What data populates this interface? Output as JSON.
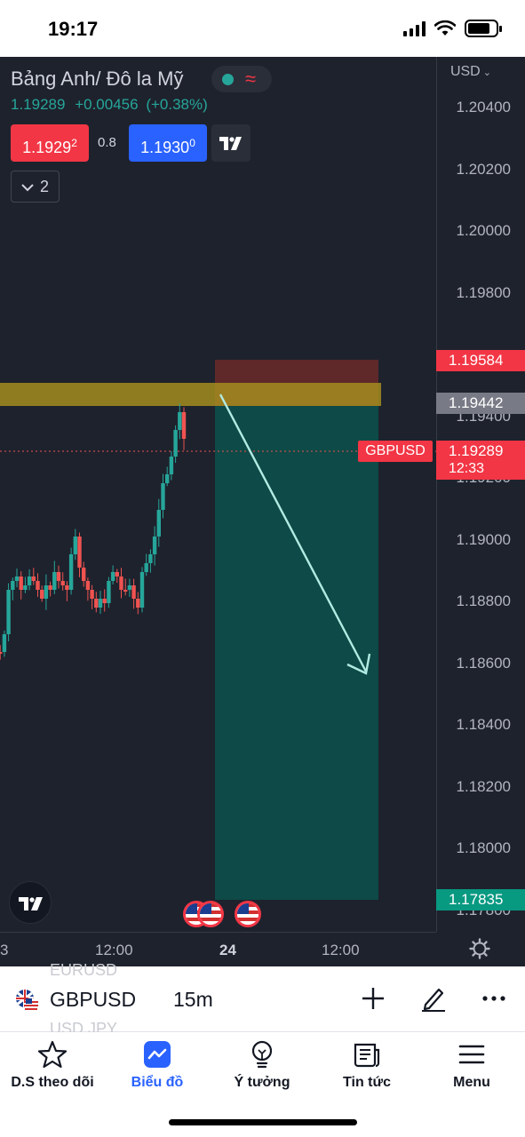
{
  "status_bar": {
    "time": "19:17"
  },
  "chart": {
    "symbol_title": "Bảng Anh/ Đô la Mỹ",
    "quote": {
      "last": "1.19289",
      "change": "+0.00456",
      "change_pct": "(+0.38%)"
    },
    "sell": {
      "main": "1.1929",
      "sup": "2"
    },
    "spread": "0.8",
    "buy": {
      "main": "1.1930",
      "sup": "0"
    },
    "collapse_count": "2",
    "currency": "USD",
    "price_axis": [
      "1.20400",
      "1.20200",
      "1.20000",
      "1.19800",
      "1.19400",
      "1.19200",
      "1.19000",
      "1.18800",
      "1.18600",
      "1.18400",
      "1.18200",
      "1.18000",
      "1.17800"
    ],
    "price_tags": {
      "stop": "1.19584",
      "entry": "1.19442",
      "last": "1.19289",
      "countdown": "12:33",
      "target": "1.17835"
    },
    "series_label": "GBPUSD",
    "time_axis": [
      "3",
      "12:00",
      "24",
      "12:00"
    ],
    "colors": {
      "up": "#26a69a",
      "down": "#ef5350",
      "bg": "#1e222d"
    }
  },
  "toolbar": {
    "ghost_top": "EURUSD",
    "ghost_bottom": "USD JPY",
    "symbol": "GBPUSD",
    "interval": "15m"
  },
  "tabs": [
    {
      "label": "D.S theo dõi",
      "icon": "star-icon"
    },
    {
      "label": "Biểu đồ",
      "icon": "chart-icon",
      "active": true
    },
    {
      "label": "Ý tưởng",
      "icon": "lightbulb-icon"
    },
    {
      "label": "Tin tức",
      "icon": "news-icon"
    },
    {
      "label": "Menu",
      "icon": "menu-icon"
    }
  ]
}
